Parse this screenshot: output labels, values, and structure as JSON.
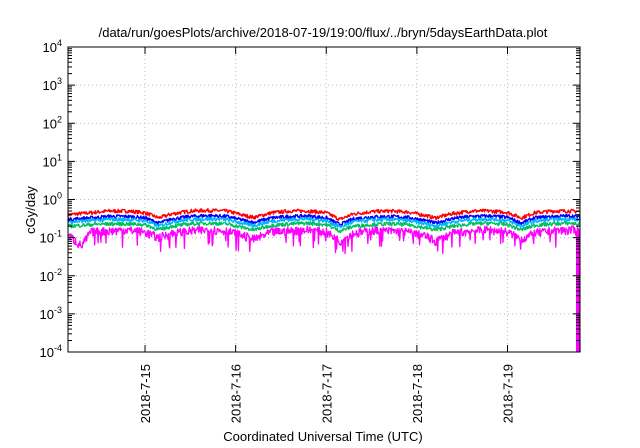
{
  "chart_data": {
    "type": "line",
    "title": "/data/run/goesPlots/archive/2018-07-19/19:00/flux/../bryn/5daysEarthData.plot",
    "xlabel": "Coordinated Universal Time (UTC)",
    "ylabel": "cGy/day",
    "yscale": "log",
    "ylim": [
      0.0001,
      10000
    ],
    "xlim": [
      14.15,
      19.8
    ],
    "x_unit": "day of 2018-07",
    "grid": true,
    "legend": "none",
    "y_ticks": [
      {
        "base": "10",
        "exp": "-4",
        "value": 0.0001
      },
      {
        "base": "10",
        "exp": "-3",
        "value": 0.001
      },
      {
        "base": "10",
        "exp": "-2",
        "value": 0.01
      },
      {
        "base": "10",
        "exp": "-1",
        "value": 0.1
      },
      {
        "base": "10",
        "exp": "0",
        "value": 1
      },
      {
        "base": "10",
        "exp": "1",
        "value": 10
      },
      {
        "base": "10",
        "exp": "2",
        "value": 100
      },
      {
        "base": "10",
        "exp": "3",
        "value": 1000
      },
      {
        "base": "10",
        "exp": "4",
        "value": 10000
      }
    ],
    "x_ticks": [
      {
        "label": "2018-7-15",
        "value": 15
      },
      {
        "label": "2018-7-16",
        "value": 16
      },
      {
        "label": "2018-7-17",
        "value": 17
      },
      {
        "label": "2018-7-18",
        "value": 18
      },
      {
        "label": "2018-7-19",
        "value": 19
      }
    ],
    "series": [
      {
        "color": "#ff0000",
        "x": [
          14.15,
          14.4,
          14.6,
          14.8,
          15.0,
          15.15,
          15.3,
          15.5,
          15.7,
          15.9,
          16.1,
          16.2,
          16.4,
          16.6,
          16.8,
          17.0,
          17.15,
          17.3,
          17.5,
          17.7,
          17.9,
          18.1,
          18.2,
          18.4,
          18.6,
          18.8,
          19.0,
          19.15,
          19.3,
          19.5,
          19.7,
          19.8
        ],
        "values": [
          0.4,
          0.45,
          0.5,
          0.5,
          0.45,
          0.33,
          0.42,
          0.5,
          0.52,
          0.5,
          0.38,
          0.34,
          0.45,
          0.5,
          0.5,
          0.45,
          0.3,
          0.42,
          0.48,
          0.5,
          0.47,
          0.38,
          0.33,
          0.43,
          0.5,
          0.5,
          0.46,
          0.33,
          0.45,
          0.5,
          0.5,
          0.48
        ]
      },
      {
        "color": "#0000ff",
        "x": [
          14.15,
          14.4,
          14.6,
          14.8,
          15.0,
          15.15,
          15.3,
          15.5,
          15.7,
          15.9,
          16.1,
          16.2,
          16.4,
          16.6,
          16.8,
          17.0,
          17.15,
          17.3,
          17.5,
          17.7,
          17.9,
          18.1,
          18.2,
          18.4,
          18.6,
          18.8,
          19.0,
          19.15,
          19.3,
          19.5,
          19.7,
          19.8
        ],
        "values": [
          0.3,
          0.33,
          0.36,
          0.36,
          0.33,
          0.24,
          0.31,
          0.36,
          0.38,
          0.36,
          0.28,
          0.25,
          0.33,
          0.36,
          0.37,
          0.33,
          0.22,
          0.31,
          0.35,
          0.36,
          0.34,
          0.28,
          0.24,
          0.32,
          0.36,
          0.37,
          0.34,
          0.24,
          0.33,
          0.36,
          0.37,
          0.35
        ]
      },
      {
        "color": "#00b4ff",
        "x": [
          14.15,
          14.4,
          14.6,
          14.8,
          15.0,
          15.15,
          15.3,
          15.5,
          15.7,
          15.9,
          16.1,
          16.2,
          16.4,
          16.6,
          16.8,
          17.0,
          17.15,
          17.3,
          17.5,
          17.7,
          17.9,
          18.1,
          18.2,
          18.4,
          18.6,
          18.8,
          19.0,
          19.15,
          19.3,
          19.5,
          19.7,
          19.8
        ],
        "values": [
          0.26,
          0.28,
          0.3,
          0.3,
          0.28,
          0.2,
          0.26,
          0.3,
          0.31,
          0.3,
          0.23,
          0.21,
          0.27,
          0.3,
          0.31,
          0.28,
          0.19,
          0.26,
          0.29,
          0.3,
          0.28,
          0.23,
          0.2,
          0.26,
          0.3,
          0.31,
          0.28,
          0.2,
          0.27,
          0.3,
          0.31,
          0.29
        ]
      },
      {
        "color": "#00c060",
        "x": [
          14.15,
          14.4,
          14.6,
          14.8,
          15.0,
          15.15,
          15.3,
          15.5,
          15.7,
          15.9,
          16.1,
          16.2,
          16.4,
          16.6,
          16.8,
          17.0,
          17.15,
          17.3,
          17.5,
          17.7,
          17.9,
          18.1,
          18.2,
          18.4,
          18.6,
          18.8,
          19.0,
          19.15,
          19.3,
          19.5,
          19.7,
          19.8
        ],
        "values": [
          0.2,
          0.22,
          0.23,
          0.23,
          0.22,
          0.16,
          0.2,
          0.23,
          0.24,
          0.23,
          0.18,
          0.16,
          0.21,
          0.23,
          0.24,
          0.22,
          0.15,
          0.2,
          0.22,
          0.23,
          0.22,
          0.18,
          0.16,
          0.2,
          0.23,
          0.24,
          0.22,
          0.16,
          0.21,
          0.23,
          0.24,
          0.22
        ]
      },
      {
        "color": "#ff00ff",
        "x": [
          14.15,
          14.3,
          14.4,
          14.6,
          14.8,
          15.0,
          15.15,
          15.3,
          15.5,
          15.7,
          15.9,
          16.1,
          16.2,
          16.4,
          16.6,
          16.8,
          17.0,
          17.15,
          17.3,
          17.5,
          17.7,
          17.9,
          18.1,
          18.2,
          18.4,
          18.6,
          18.8,
          19.0,
          19.15,
          19.3,
          19.5,
          19.7,
          19.79,
          19.8
        ],
        "values": [
          0.12,
          0.06,
          0.14,
          0.15,
          0.16,
          0.14,
          0.1,
          0.13,
          0.15,
          0.16,
          0.15,
          0.11,
          0.09,
          0.14,
          0.15,
          0.16,
          0.14,
          0.08,
          0.13,
          0.15,
          0.15,
          0.14,
          0.11,
          0.08,
          0.13,
          0.15,
          0.16,
          0.14,
          0.09,
          0.13,
          0.15,
          0.16,
          0.15,
          0.0001
        ]
      }
    ]
  }
}
